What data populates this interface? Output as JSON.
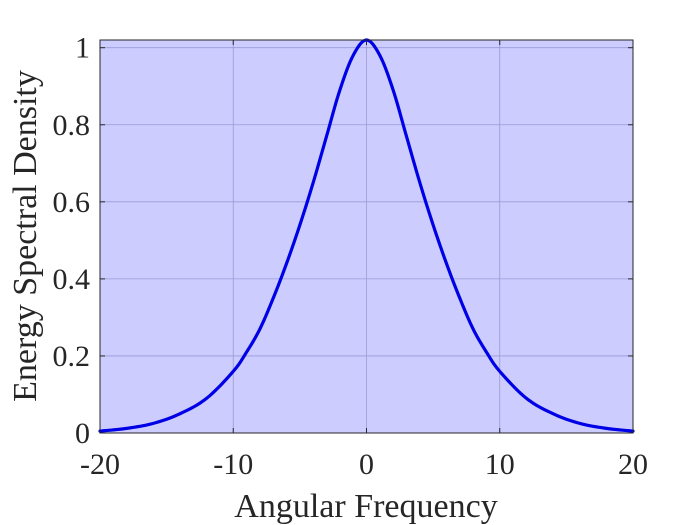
{
  "chart_data": {
    "type": "area",
    "xlabel": "Angular Frequency",
    "ylabel": "Energy Spectral Density",
    "xlim": [
      -20,
      20
    ],
    "ylim": [
      0,
      1.02
    ],
    "xticks": [
      -20,
      -10,
      0,
      10,
      20
    ],
    "xtick_labels": [
      "-20",
      "-10",
      "0",
      "10",
      "20"
    ],
    "yticks": [
      0,
      0.2,
      0.4,
      0.6,
      0.8,
      1
    ],
    "ytick_labels": [
      "0",
      "0.2",
      "0.4",
      "0.6",
      "0.8",
      "1"
    ],
    "grid": true,
    "plot_background": "#ccccff",
    "line_color": "#0000e6",
    "series": [
      {
        "x": [
          -20,
          -18,
          -16,
          -14,
          -12,
          -10,
          -9,
          -8,
          -7,
          -6,
          -5,
          -4,
          -3,
          -2,
          -1,
          0,
          1,
          2,
          3,
          4,
          5,
          6,
          7,
          8,
          9,
          10,
          12,
          14,
          16,
          18,
          20
        ],
        "y": [
          0.005,
          0.012,
          0.025,
          0.05,
          0.09,
          0.16,
          0.21,
          0.27,
          0.35,
          0.44,
          0.54,
          0.65,
          0.77,
          0.89,
          0.98,
          1.02,
          0.98,
          0.89,
          0.77,
          0.65,
          0.54,
          0.44,
          0.35,
          0.27,
          0.21,
          0.16,
          0.09,
          0.05,
          0.025,
          0.012,
          0.005
        ]
      }
    ]
  }
}
